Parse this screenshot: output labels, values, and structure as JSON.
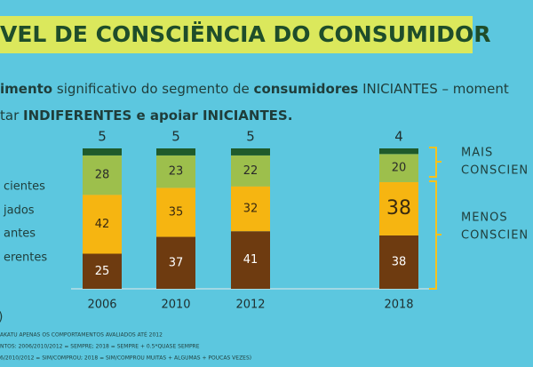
{
  "chart_data": {
    "type": "stacked_bar",
    "title": "VEL DE CONSCIËNCIA DO CONSUMIDOR",
    "subtitle_lines": [
      [
        {
          "text": "imento",
          "bold": true
        },
        {
          "text": " significativo do segmento de ",
          "bold": false
        },
        {
          "text": "consumidores",
          "bold": true
        },
        {
          "text": " INICIANTES – moment",
          "bold": false
        }
      ],
      [
        {
          "text": "tar ",
          "bold": false
        },
        {
          "text": "INDIFERENTES e apoiar INICIANTES.",
          "bold": true
        }
      ]
    ],
    "categories": [
      "2006",
      "2010",
      "2012",
      "2018"
    ],
    "series": [
      {
        "name": "erentes",
        "color": "#6e3b10",
        "label_color": "#ffffff",
        "values": [
          25,
          37,
          41,
          38
        ]
      },
      {
        "name": "antes",
        "color": "#f6b511",
        "label_color": "#3a2a10",
        "values": [
          42,
          35,
          32,
          38
        ]
      },
      {
        "name": "jados",
        "color": "#9dbf4c",
        "label_color": "#2a2a2a",
        "values": [
          28,
          23,
          22,
          20
        ]
      },
      {
        "name": "cientes",
        "color": "#1f5a2b",
        "label_color": "#2a2a2a",
        "values": [
          5,
          5,
          5,
          4
        ]
      }
    ],
    "bracket_labels": [
      [
        "MAIS",
        "CONSCIEN"
      ],
      [
        "MENOS",
        "CONSCIEN"
      ]
    ],
    "footnotes": [
      "AKATU APENAS OS COMPORTAMENTOS AVALIADOS ATÉ 2012",
      "NTOS: 2006/2010/2012 = SEMPRE; 2018 = SEMPRE + 0.5*QUASE SEMPRE",
      "6/2010/2012 = SIM/COMPROU; 2018 = SIM/COMPROU MUITAS + ALGUMAS + POUCAS VEZES)"
    ],
    "side_mark": ")"
  }
}
